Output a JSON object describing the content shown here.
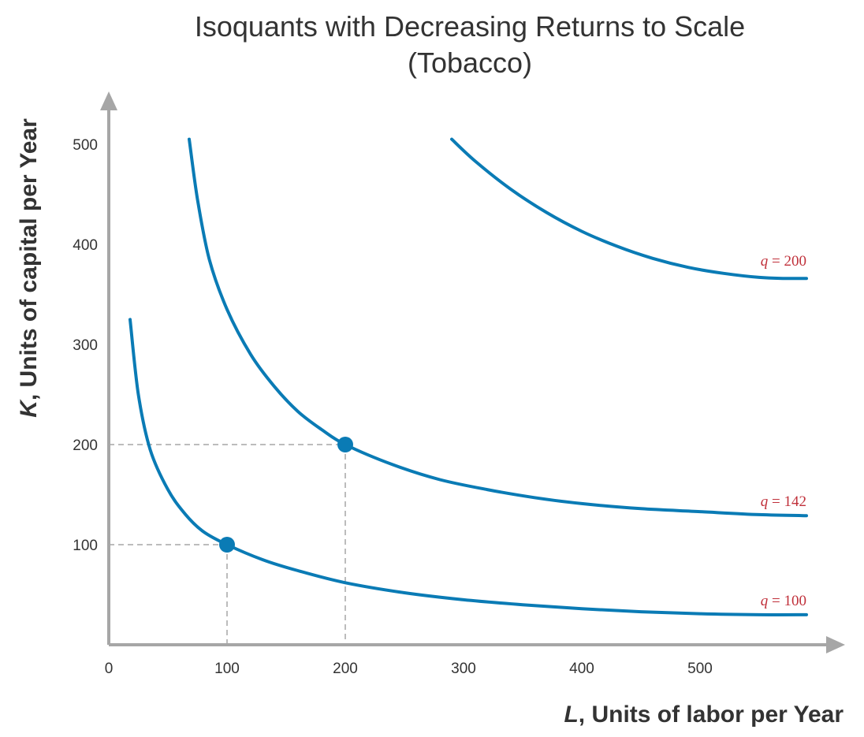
{
  "chart_data": {
    "type": "line",
    "title": "Isoquants with Decreasing Returns to Scale",
    "subtitle": "(Tobacco)",
    "xlabel": {
      "var": "L",
      "text": ", Units of labor per Year"
    },
    "ylabel": {
      "var": "K",
      "text": ", Units of capital per Year"
    },
    "xlim": [
      0,
      600
    ],
    "ylim": [
      0,
      550
    ],
    "x_ticks": [
      0,
      100,
      200,
      300,
      400,
      500
    ],
    "y_ticks": [
      100,
      200,
      300,
      400,
      500
    ],
    "grid": false,
    "series": [
      {
        "name": "q = 100",
        "label_var": "q",
        "label_value": "= 100",
        "x": [
          18,
          25,
          35,
          50,
          65,
          80,
          100,
          130,
          160,
          200,
          250,
          300,
          350,
          400,
          450,
          500,
          550,
          590
        ],
        "y": [
          325,
          250,
          195,
          155,
          130,
          113,
          100,
          85,
          74,
          62,
          52,
          45,
          40,
          36,
          33,
          31,
          30,
          30
        ]
      },
      {
        "name": "q = 142",
        "label_var": "q",
        "label_value": "= 142",
        "x": [
          68,
          75,
          85,
          100,
          120,
          140,
          160,
          180,
          200,
          240,
          280,
          320,
          360,
          400,
          450,
          500,
          550,
          590
        ],
        "y": [
          505,
          445,
          385,
          335,
          290,
          258,
          233,
          215,
          200,
          180,
          165,
          155,
          147,
          141,
          136,
          133,
          130,
          129
        ]
      },
      {
        "name": "q = 200",
        "label_var": "q",
        "label_value": "= 200",
        "x": [
          290,
          310,
          340,
          370,
          400,
          430,
          460,
          490,
          520,
          550,
          570,
          590
        ],
        "y": [
          505,
          483,
          455,
          432,
          413,
          398,
          386,
          377,
          371,
          367,
          366,
          366
        ]
      }
    ],
    "points": [
      {
        "x": 100,
        "y": 100
      },
      {
        "x": 200,
        "y": 200
      }
    ],
    "colors": {
      "curve": "#0a7bb5",
      "point": "#0a7bb5",
      "axis": "#a6a6a6",
      "dashed": "#a6a6a6",
      "label": "#c0303a",
      "text": "#333333"
    }
  }
}
